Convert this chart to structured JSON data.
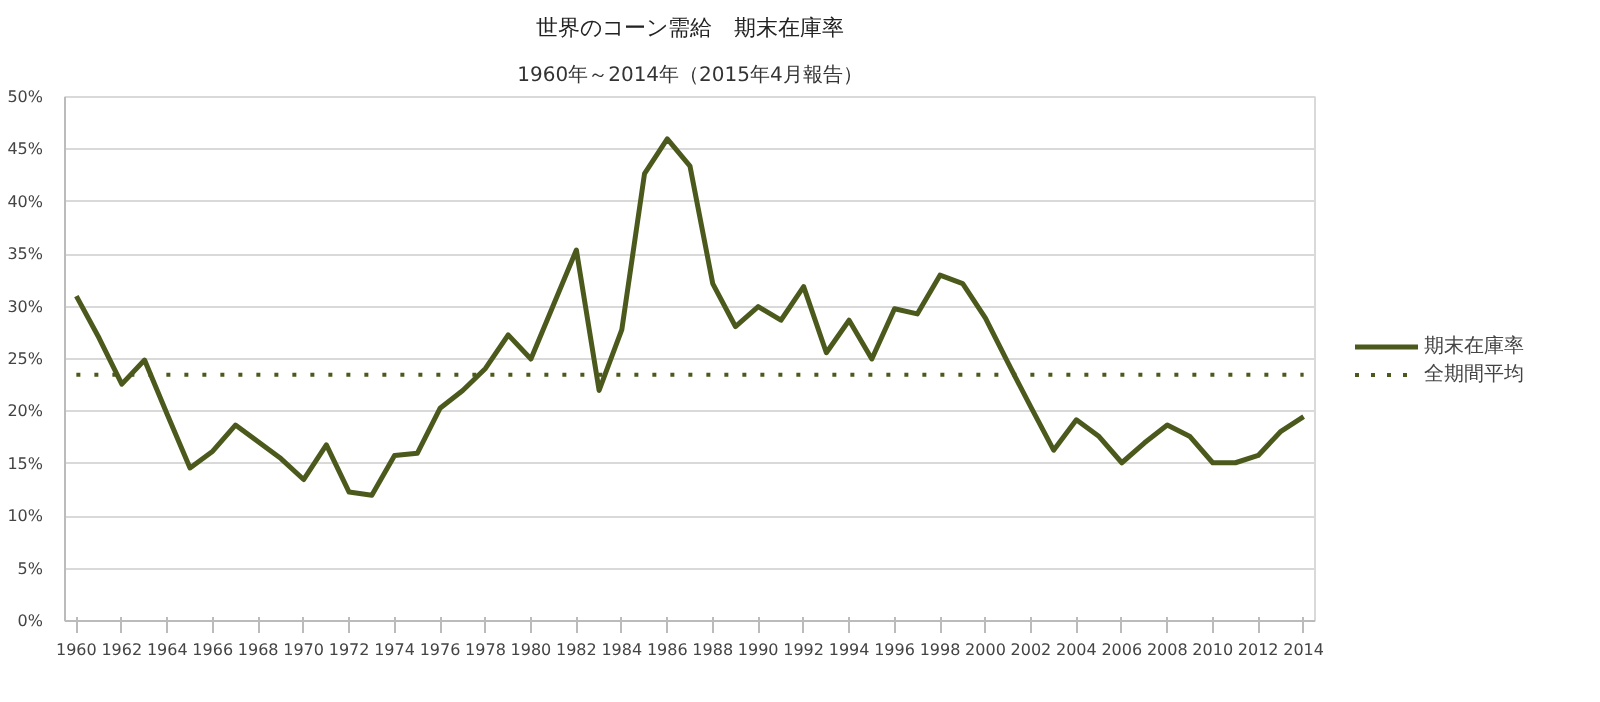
{
  "chart_data": {
    "type": "line",
    "title": "世界のコーン需給　期末在庫率",
    "subtitle": "1960年～2014年（2015年4月報告）",
    "x": [
      1960,
      1961,
      1962,
      1963,
      1964,
      1965,
      1966,
      1967,
      1968,
      1969,
      1970,
      1971,
      1972,
      1973,
      1974,
      1975,
      1976,
      1977,
      1978,
      1979,
      1980,
      1981,
      1982,
      1983,
      1984,
      1985,
      1986,
      1987,
      1988,
      1989,
      1990,
      1991,
      1992,
      1993,
      1994,
      1995,
      1996,
      1997,
      1998,
      1999,
      2000,
      2001,
      2002,
      2003,
      2004,
      2005,
      2006,
      2007,
      2008,
      2009,
      2010,
      2011,
      2012,
      2013,
      2014
    ],
    "series": [
      {
        "name": "期末在庫率",
        "color": "#4b5a1c",
        "line_style": "solid",
        "values": [
          31.0,
          27.0,
          22.6,
          24.9,
          19.7,
          14.6,
          16.2,
          18.7,
          17.1,
          15.5,
          13.5,
          16.8,
          12.3,
          12.0,
          15.8,
          16.0,
          20.3,
          22.0,
          24.1,
          27.3,
          25.0,
          30.2,
          35.4,
          22.0,
          27.8,
          42.7,
          46.0,
          43.4,
          32.2,
          28.1,
          30.0,
          28.7,
          31.9,
          25.6,
          28.7,
          25.0,
          29.8,
          29.3,
          33.0,
          32.2,
          28.9,
          24.6,
          20.4,
          16.3,
          19.2,
          17.6,
          15.1,
          17.0,
          18.7,
          17.6,
          15.1,
          15.1,
          15.8,
          18.1,
          19.5
        ]
      },
      {
        "name": "全期間平均",
        "color": "#4b5a1c",
        "line_style": "dotted",
        "values": [
          23.5,
          23.5,
          23.5,
          23.5,
          23.5,
          23.5,
          23.5,
          23.5,
          23.5,
          23.5,
          23.5,
          23.5,
          23.5,
          23.5,
          23.5,
          23.5,
          23.5,
          23.5,
          23.5,
          23.5,
          23.5,
          23.5,
          23.5,
          23.5,
          23.5,
          23.5,
          23.5,
          23.5,
          23.5,
          23.5,
          23.5,
          23.5,
          23.5,
          23.5,
          23.5,
          23.5,
          23.5,
          23.5,
          23.5,
          23.5,
          23.5,
          23.5,
          23.5,
          23.5,
          23.5,
          23.5,
          23.5,
          23.5,
          23.5,
          23.5,
          23.5,
          23.5,
          23.5,
          23.5,
          23.5
        ]
      }
    ],
    "xlim": [
      1959.5,
      2014.5
    ],
    "xticks": [
      1960,
      1962,
      1964,
      1966,
      1968,
      1970,
      1972,
      1974,
      1976,
      1978,
      1980,
      1982,
      1984,
      1986,
      1988,
      1990,
      1992,
      1994,
      1996,
      1998,
      2000,
      2002,
      2004,
      2006,
      2008,
      2010,
      2012,
      2014
    ],
    "ylim": [
      0,
      50
    ],
    "yticks": [
      {
        "value": 0,
        "label": "0%"
      },
      {
        "value": 5,
        "label": "5%"
      },
      {
        "value": 10,
        "label": "10%"
      },
      {
        "value": 15,
        "label": "15%"
      },
      {
        "value": 20,
        "label": "20%"
      },
      {
        "value": 25,
        "label": "25%"
      },
      {
        "value": 30,
        "label": "30%"
      },
      {
        "value": 35,
        "label": "35%"
      },
      {
        "value": 40,
        "label": "40%"
      },
      {
        "value": 45,
        "label": "45%"
      },
      {
        "value": 50,
        "label": "50%"
      }
    ],
    "grid": "y",
    "legend": "right",
    "marker": "none"
  }
}
